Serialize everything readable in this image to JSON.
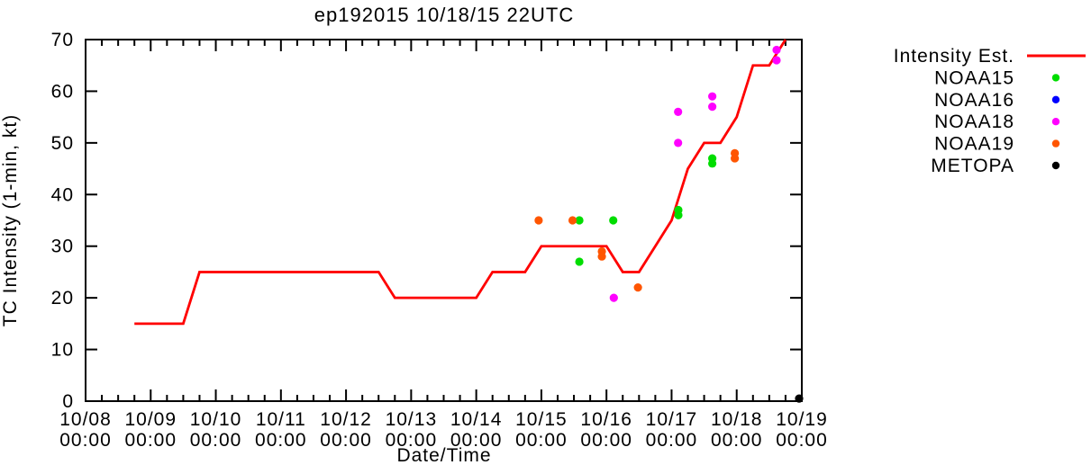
{
  "title": "ep192015 10/18/15 22UTC",
  "axes": {
    "x_label": "Date/Time",
    "y_label": "TC Intensity (1-min, kt)",
    "x_tick_days": [
      "10/08",
      "10/09",
      "10/10",
      "10/11",
      "10/12",
      "10/13",
      "10/14",
      "10/15",
      "10/16",
      "10/17",
      "10/18",
      "10/19"
    ],
    "x_tick_time": "00:00",
    "y_ticks": [
      "0",
      "10",
      "20",
      "30",
      "40",
      "50",
      "60",
      "70"
    ]
  },
  "legend": {
    "items": [
      {
        "label": "Intensity Est.",
        "marker": "line",
        "color": "#ff0000"
      },
      {
        "label": "NOAA15",
        "marker": "dot",
        "color": "#00dd00"
      },
      {
        "label": "NOAA16",
        "marker": "dot",
        "color": "#0000ff"
      },
      {
        "label": "NOAA18",
        "marker": "dot",
        "color": "#ff00ff"
      },
      {
        "label": "NOAA19",
        "marker": "dot",
        "color": "#ff5500"
      },
      {
        "label": "METOPA",
        "marker": "dot",
        "color": "#000000"
      }
    ]
  },
  "chart_data": {
    "type": "line",
    "title": "ep192015 10/18/15 22UTC",
    "xlabel": "Date/Time",
    "ylabel": "TC Intensity (1-min, kt)",
    "x_axis": {
      "unit": "hours since 10/08 00:00 UTC",
      "lim": [
        0,
        264
      ],
      "major_tick_hours": 24,
      "minor_tick_hours": 6
    },
    "y_axis": {
      "lim": [
        0,
        70
      ],
      "tick_step": 10
    },
    "grid": false,
    "legend_position": "right-outside",
    "intensity_line": {
      "name": "Intensity Est.",
      "color": "#ff0000",
      "points_h_kt": [
        [
          18,
          15
        ],
        [
          36,
          15
        ],
        [
          42,
          25
        ],
        [
          108,
          25
        ],
        [
          114,
          20
        ],
        [
          144,
          20
        ],
        [
          150,
          25
        ],
        [
          162,
          25
        ],
        [
          168,
          30
        ],
        [
          192,
          30
        ],
        [
          198,
          25
        ],
        [
          204,
          25
        ],
        [
          210,
          30
        ],
        [
          216,
          35
        ],
        [
          222,
          45
        ],
        [
          228,
          50
        ],
        [
          234,
          50
        ],
        [
          240,
          55
        ],
        [
          246,
          65
        ],
        [
          252,
          65
        ],
        [
          258,
          70
        ]
      ]
    },
    "satellite_points": [
      {
        "name": "NOAA15",
        "color": "#00dd00",
        "points_h_kt": [
          [
            182,
            35
          ],
          [
            182,
            27
          ],
          [
            194.5,
            35
          ],
          [
            218.5,
            37
          ],
          [
            218.5,
            36
          ],
          [
            231,
            47
          ],
          [
            231,
            46
          ]
        ]
      },
      {
        "name": "NOAA16",
        "color": "#0000ff",
        "points_h_kt": []
      },
      {
        "name": "NOAA18",
        "color": "#ff00ff",
        "points_h_kt": [
          [
            194.7,
            20
          ],
          [
            218.4,
            56
          ],
          [
            218.4,
            50
          ],
          [
            231,
            59
          ],
          [
            231,
            57
          ],
          [
            254.7,
            68
          ],
          [
            254.7,
            66
          ]
        ]
      },
      {
        "name": "NOAA19",
        "color": "#ff5500",
        "points_h_kt": [
          [
            167,
            35
          ],
          [
            179.5,
            35
          ],
          [
            190.3,
            29
          ],
          [
            190.3,
            28
          ],
          [
            203.6,
            22
          ],
          [
            239.3,
            48
          ],
          [
            239.3,
            47
          ]
        ]
      },
      {
        "name": "METOPA",
        "color": "#000000",
        "points_h_kt": [
          [
            263,
            0.5
          ]
        ]
      }
    ]
  }
}
